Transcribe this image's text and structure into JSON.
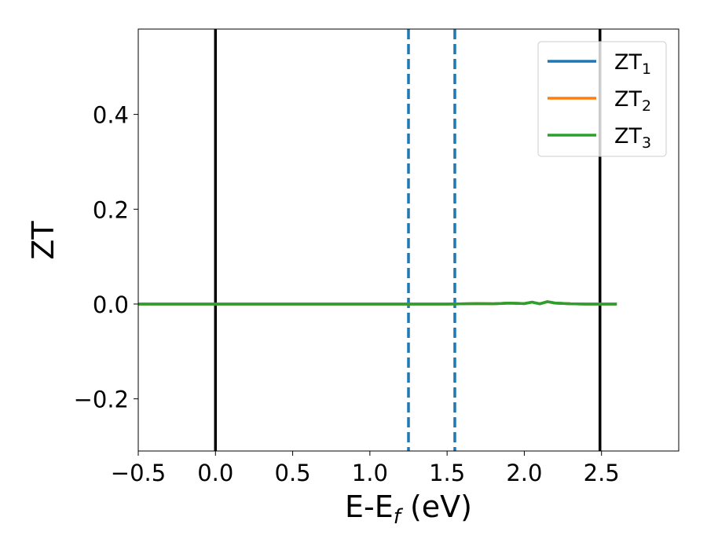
{
  "chart_data": {
    "type": "line",
    "title": "",
    "xlabel": "E-E",
    "xlabel_sub": "f",
    "xlabel_suffix": " (eV)",
    "ylabel": "ZT",
    "xlim": [
      -0.5,
      3.0
    ],
    "ylim": [
      -0.31,
      0.58
    ],
    "xticks": [
      -0.5,
      0.0,
      0.5,
      1.0,
      1.5,
      2.0,
      2.5
    ],
    "xtick_labels": [
      "−0.5",
      "0.0",
      "0.5",
      "1.0",
      "1.5",
      "2.0",
      "2.5"
    ],
    "yticks": [
      -0.2,
      0.0,
      0.2,
      0.4
    ],
    "ytick_labels": [
      "−0.2",
      "0.0",
      "0.2",
      "0.4"
    ],
    "grid": false,
    "legend_position": "top-right",
    "vlines": [
      {
        "x": 0.0,
        "color": "#000000",
        "style": "solid"
      },
      {
        "x": 2.49,
        "color": "#000000",
        "style": "solid"
      },
      {
        "x": 1.25,
        "color": "#1f77b4",
        "style": "dashed"
      },
      {
        "x": 1.55,
        "color": "#1f77b4",
        "style": "dashed"
      }
    ],
    "series": [
      {
        "name": "ZT",
        "name_sub": "1",
        "color": "#1f77b4",
        "x": [
          -0.5,
          0.0,
          0.5,
          1.0,
          1.5,
          1.7,
          1.8,
          1.9,
          2.0,
          2.05,
          2.1,
          2.15,
          2.2,
          2.3,
          2.4,
          2.49,
          2.59
        ],
        "y": [
          0,
          0,
          0,
          0,
          0,
          0.001,
          0.0005,
          0.002,
          0.001,
          0.004,
          0.0005,
          0.005,
          0.002,
          0.0005,
          0,
          0,
          0
        ]
      },
      {
        "name": "ZT",
        "name_sub": "2",
        "color": "#ff7f0e",
        "x": [
          -0.5,
          0.0,
          0.5,
          1.0,
          1.5,
          1.7,
          1.8,
          1.9,
          2.0,
          2.05,
          2.1,
          2.15,
          2.2,
          2.3,
          2.4,
          2.49,
          2.59
        ],
        "y": [
          0,
          0,
          0,
          0,
          0,
          0.001,
          0.0005,
          0.002,
          0.001,
          0.004,
          0.0005,
          0.005,
          0.002,
          0.0005,
          0,
          0,
          0
        ]
      },
      {
        "name": "ZT",
        "name_sub": "3",
        "color": "#2ca02c",
        "x": [
          -0.5,
          0.0,
          0.5,
          1.0,
          1.5,
          1.7,
          1.8,
          1.9,
          2.0,
          2.05,
          2.1,
          2.15,
          2.2,
          2.3,
          2.4,
          2.49,
          2.59
        ],
        "y": [
          0,
          0,
          0,
          0,
          0,
          0.001,
          0.0005,
          0.002,
          0.001,
          0.004,
          0.0005,
          0.005,
          0.002,
          0.0005,
          0,
          0,
          0
        ]
      }
    ]
  }
}
